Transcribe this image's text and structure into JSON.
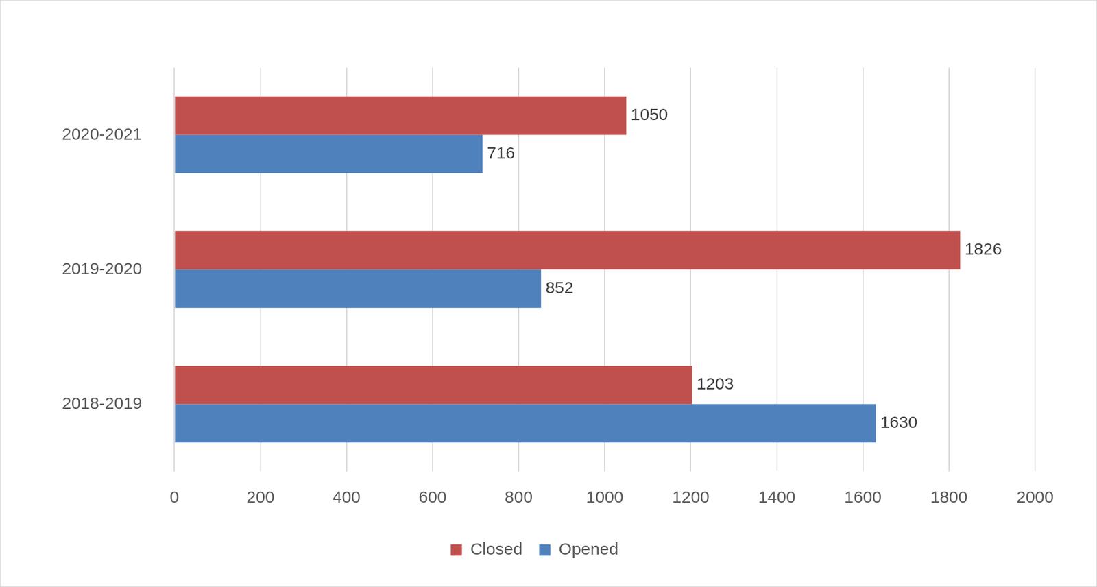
{
  "chart_data": {
    "type": "bar",
    "orientation": "horizontal",
    "categories": [
      "2020-2021",
      "2019-2020",
      "2018-2019"
    ],
    "series": [
      {
        "name": "Closed",
        "color": "#c0504d",
        "values": [
          1050,
          1826,
          1203
        ]
      },
      {
        "name": "Opened",
        "color": "#4f81bd",
        "values": [
          716,
          852,
          1630
        ]
      }
    ],
    "xlim": [
      0,
      2000
    ],
    "xticks": [
      0,
      200,
      400,
      600,
      800,
      1000,
      1200,
      1400,
      1600,
      1800,
      2000
    ],
    "grid": true,
    "legend": "bottom",
    "data_labels": true
  }
}
